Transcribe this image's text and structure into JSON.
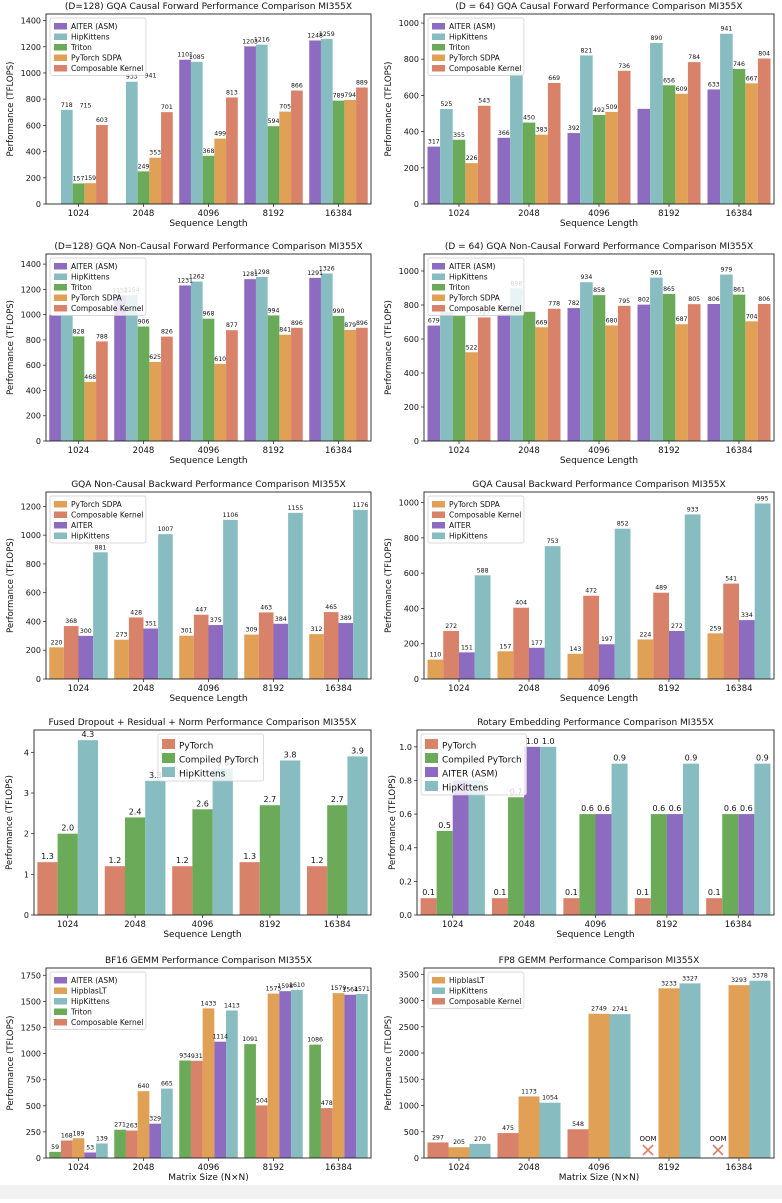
{
  "chart_data": [
    {
      "type": "bar",
      "title": "(D=128) GQA Causal Forward Performance Comparison MI355X",
      "xlabel": "Sequence Length",
      "ylabel": "Performance (TFLOPS)",
      "ylim": [
        0,
        1450
      ],
      "yticks": [
        "0",
        "200",
        "400",
        "600",
        "800",
        "1000",
        "1200",
        "1400"
      ],
      "legend_position": "upper-left",
      "categories": [
        "1024",
        "2048",
        "4096",
        "8192",
        "16384"
      ],
      "draw_order": [
        "PyTorch SDPA",
        "Triton",
        "Composable Kernel",
        "AITER (ASM)",
        "HipKittens"
      ],
      "series": [
        {
          "name": "AITER (ASM)",
          "color": "#8c6bc0",
          "values": [
            null,
            null,
            1101,
            1203,
            1248
          ],
          "labels": [
            "",
            "",
            "1101",
            "1203",
            "1248"
          ]
        },
        {
          "name": "HipKittens",
          "color": "#87bcc0",
          "values": [
            718,
            933,
            1085,
            1216,
            1259
          ],
          "labels": [
            "718",
            "933",
            "1085",
            "1216",
            "1259"
          ]
        },
        {
          "name": "Triton",
          "color": "#6aaa58",
          "values": [
            157,
            249,
            368,
            594,
            789
          ],
          "labels": [
            "157",
            "249",
            "368",
            "594",
            "789"
          ]
        },
        {
          "name": "PyTorch SDPA",
          "color": "#e0a055",
          "values": [
            159,
            353,
            499,
            705,
            794
          ],
          "labels": [
            "159",
            "353",
            "499",
            "705",
            "794"
          ]
        },
        {
          "name": "Composable Kernel",
          "color": "#d8826a",
          "values": [
            603,
            701,
            813,
            866,
            889
          ],
          "labels": [
            "603",
            "701",
            "813",
            "866",
            "889"
          ]
        }
      ],
      "extra_labels": [
        {
          "text": "715",
          "category": "1024",
          "value": 715
        },
        {
          "text": "941",
          "category": "2048",
          "value": 941
        }
      ]
    },
    {
      "type": "bar",
      "title": "(D = 64) GQA Causal Forward Performance Comparison MI355X",
      "xlabel": "Sequence Length",
      "ylabel": "Performance (TFLOPS)",
      "ylim": [
        0,
        1050
      ],
      "yticks": [
        "0",
        "200",
        "400",
        "600",
        "800",
        "1000"
      ],
      "legend_position": "upper-left",
      "categories": [
        "1024",
        "2048",
        "4096",
        "8192",
        "16384"
      ],
      "draw_order": [
        "PyTorch SDPA",
        "Triton",
        "Composable Kernel",
        "AITER (ASM)",
        "HipKittens"
      ],
      "series": [
        {
          "name": "AITER (ASM)",
          "color": "#8c6bc0",
          "values": [
            317,
            366,
            392,
            526,
            633
          ],
          "labels": [
            "317",
            "366",
            "392",
            "",
            "633"
          ]
        },
        {
          "name": "HipKittens",
          "color": "#87bcc0",
          "values": [
            525,
            722,
            821,
            890,
            941
          ],
          "labels": [
            "525",
            "722",
            "821",
            "890",
            "941"
          ]
        },
        {
          "name": "Triton",
          "color": "#6aaa58",
          "values": [
            355,
            450,
            492,
            656,
            746
          ],
          "labels": [
            "355",
            "450",
            "492",
            "656",
            "746"
          ]
        },
        {
          "name": "PyTorch SDPA",
          "color": "#e0a055",
          "values": [
            226,
            383,
            509,
            609,
            667
          ],
          "labels": [
            "226",
            "383",
            "509",
            "609",
            "667"
          ]
        },
        {
          "name": "Composable Kernel",
          "color": "#d8826a",
          "values": [
            543,
            669,
            736,
            784,
            804
          ],
          "labels": [
            "543",
            "669",
            "736",
            "784",
            "804"
          ]
        }
      ]
    },
    {
      "type": "bar",
      "title": "(D=128) GQA Non-Causal Forward Performance Comparison MI355X",
      "xlabel": "Sequence Length",
      "ylabel": "Performance (TFLOPS)",
      "ylim": [
        0,
        1480
      ],
      "yticks": [
        "0",
        "200",
        "400",
        "600",
        "800",
        "1000",
        "1200",
        "1400"
      ],
      "legend_position": "upper-left",
      "categories": [
        "1024",
        "2048",
        "4096",
        "8192",
        "16384"
      ],
      "draw_order": [
        "PyTorch SDPA",
        "Triton",
        "Composable Kernel",
        "AITER (ASM)",
        "HipKittens"
      ],
      "series": [
        {
          "name": "AITER (ASM)",
          "color": "#8c6bc0",
          "values": [
            1000,
            1152,
            1231,
            1281,
            1291
          ],
          "labels": [
            "",
            "1152",
            "1231",
            "1281",
            "1291"
          ]
        },
        {
          "name": "HipKittens",
          "color": "#87bcc0",
          "values": [
            1000,
            1154,
            1262,
            1298,
            1326
          ],
          "labels": [
            "",
            "1154",
            "1262",
            "1298",
            "1326"
          ]
        },
        {
          "name": "Triton",
          "color": "#6aaa58",
          "values": [
            828,
            906,
            968,
            994,
            990
          ],
          "labels": [
            "828",
            "906",
            "968",
            "994",
            "990"
          ]
        },
        {
          "name": "PyTorch SDPA",
          "color": "#e0a055",
          "values": [
            468,
            625,
            610,
            841,
            879
          ],
          "labels": [
            "468",
            "625",
            "610",
            "841",
            "879"
          ]
        },
        {
          "name": "Composable Kernel",
          "color": "#d8826a",
          "values": [
            788,
            826,
            877,
            896,
            896
          ],
          "labels": [
            "788",
            "826",
            "877",
            "896",
            "896"
          ]
        }
      ]
    },
    {
      "type": "bar",
      "title": "(D = 64) GQA Non-Causal Forward Performance Comparison MI355X",
      "xlabel": "Sequence Length",
      "ylabel": "Performance (TFLOPS)",
      "ylim": [
        0,
        1100
      ],
      "yticks": [
        "0",
        "200",
        "400",
        "600",
        "800",
        "1000"
      ],
      "legend_position": "upper-left",
      "categories": [
        "1024",
        "2048",
        "4096",
        "8192",
        "16384"
      ],
      "draw_order": [
        "PyTorch SDPA",
        "Triton",
        "Composable Kernel",
        "AITER (ASM)",
        "HipKittens"
      ],
      "series": [
        {
          "name": "AITER (ASM)",
          "color": "#8c6bc0",
          "values": [
            679,
            746,
            782,
            802,
            806
          ],
          "labels": [
            "679",
            "746",
            "782",
            "802",
            "806"
          ]
        },
        {
          "name": "HipKittens",
          "color": "#87bcc0",
          "values": [
            760,
            898,
            934,
            961,
            979
          ],
          "labels": [
            "",
            "898",
            "934",
            "961",
            "979"
          ]
        },
        {
          "name": "Triton",
          "color": "#6aaa58",
          "values": [
            735,
            760,
            858,
            865,
            861
          ],
          "labels": [
            "",
            "",
            "858",
            "865",
            "861"
          ]
        },
        {
          "name": "PyTorch SDPA",
          "color": "#e0a055",
          "values": [
            522,
            669,
            680,
            687,
            704
          ],
          "labels": [
            "522",
            "669",
            "680",
            "687",
            "704"
          ]
        },
        {
          "name": "Composable Kernel",
          "color": "#d8826a",
          "values": [
            727,
            778,
            795,
            805,
            806
          ],
          "labels": [
            "727",
            "778",
            "795",
            "805",
            "806"
          ]
        }
      ]
    },
    {
      "type": "bar",
      "title": "GQA Non-Causal Backward Performance Comparison MI355X",
      "xlabel": "Sequence Length",
      "ylabel": "Performance (TFLOPS)",
      "ylim": [
        0,
        1300
      ],
      "yticks": [
        "0",
        "200",
        "400",
        "600",
        "800",
        "1000",
        "1200"
      ],
      "legend_position": "upper-left",
      "categories": [
        "1024",
        "2048",
        "4096",
        "8192",
        "16384"
      ],
      "series": [
        {
          "name": "PyTorch SDPA",
          "color": "#e0a055",
          "values": [
            220,
            273,
            301,
            309,
            312
          ]
        },
        {
          "name": "Composable Kernel",
          "color": "#d8826a",
          "values": [
            368,
            428,
            447,
            463,
            465
          ]
        },
        {
          "name": "AITER",
          "color": "#8c6bc0",
          "values": [
            300,
            351,
            375,
            384,
            389
          ]
        },
        {
          "name": "HipKittens",
          "color": "#87bcc0",
          "values": [
            881,
            1007,
            1106,
            1155,
            1176
          ]
        }
      ]
    },
    {
      "type": "bar",
      "title": "GQA Causal Backward Performance Comparison MI355X",
      "xlabel": "Sequence Length",
      "ylabel": "Performance (TFLOPS)",
      "ylim": [
        0,
        1060
      ],
      "yticks": [
        "0",
        "200",
        "400",
        "600",
        "800",
        "1000"
      ],
      "legend_position": "upper-left",
      "categories": [
        "1024",
        "2048",
        "4096",
        "8192",
        "16384"
      ],
      "series": [
        {
          "name": "PyTorch SDPA",
          "color": "#e0a055",
          "values": [
            110,
            157,
            143,
            224,
            259
          ]
        },
        {
          "name": "Composable Kernel",
          "color": "#d8826a",
          "values": [
            272,
            404,
            472,
            489,
            541
          ]
        },
        {
          "name": "AITER",
          "color": "#8c6bc0",
          "values": [
            151,
            177,
            197,
            272,
            334
          ]
        },
        {
          "name": "HipKittens",
          "color": "#87bcc0",
          "values": [
            588,
            753,
            852,
            933,
            995
          ]
        }
      ]
    },
    {
      "type": "bar",
      "title": "Fused Dropout + Residual + Norm Performance Comparison MI355X",
      "xlabel": "Sequence Length",
      "ylabel": "Performance (TFLOPS)",
      "ylim": [
        0,
        4.55
      ],
      "yticks": [
        "0",
        "1",
        "2",
        "3",
        "4"
      ],
      "legend_position": "upper-center",
      "categories": [
        "1024",
        "2048",
        "4096",
        "8192",
        "16384"
      ],
      "series": [
        {
          "name": "PyTorch",
          "color": "#d8826a",
          "values": [
            1.3,
            1.2,
            1.2,
            1.3,
            1.2
          ],
          "labels": [
            "1.3",
            "1.2",
            "1.2",
            "1.3",
            "1.2"
          ]
        },
        {
          "name": "Compiled PyTorch",
          "color": "#6aaa58",
          "values": [
            2.0,
            2.4,
            2.6,
            2.7,
            2.7
          ],
          "labels": [
            "2.0",
            "2.4",
            "2.6",
            "2.7",
            "2.7"
          ]
        },
        {
          "name": "HipKittens",
          "color": "#87bcc0",
          "values": [
            4.3,
            3.3,
            3.6,
            3.8,
            3.9
          ],
          "labels": [
            "4.3",
            "3.3",
            "3.6",
            "3.8",
            "3.9"
          ]
        }
      ]
    },
    {
      "type": "bar",
      "title": "Rotary Embedding Performance Comparison MI355X",
      "xlabel": "Sequence Length",
      "ylabel": "Performance (TFLOPS)",
      "ylim": [
        0,
        1.1
      ],
      "yticks": [
        "0.0",
        "0.2",
        "0.4",
        "0.6",
        "0.8",
        "1.0"
      ],
      "legend_position": "upper-left",
      "categories": [
        "1024",
        "2048",
        "4096",
        "8192",
        "16384"
      ],
      "series": [
        {
          "name": "PyTorch",
          "color": "#d8826a",
          "values": [
            0.1,
            0.1,
            0.1,
            0.1,
            0.1
          ],
          "labels": [
            "0.1",
            "0.1",
            "0.1",
            "0.1",
            "0.1"
          ]
        },
        {
          "name": "Compiled PyTorch",
          "color": "#6aaa58",
          "values": [
            0.5,
            0.7,
            0.6,
            0.6,
            0.6
          ],
          "labels": [
            "0.5",
            "0.7",
            "0.6",
            "0.6",
            "0.6"
          ]
        },
        {
          "name": "AITER (ASM)",
          "color": "#8c6bc0",
          "values": [
            0.8,
            1.0,
            0.6,
            0.6,
            0.6
          ],
          "labels": [
            "",
            "1.0",
            "0.6",
            "0.6",
            "0.6"
          ]
        },
        {
          "name": "HipKittens",
          "color": "#87bcc0",
          "values": [
            0.8,
            1.0,
            0.9,
            0.9,
            0.9
          ],
          "labels": [
            "",
            "1.0",
            "0.9",
            "0.9",
            "0.9"
          ]
        }
      ]
    },
    {
      "type": "bar",
      "title": "BF16 GEMM Performance Comparison MI355X",
      "xlabel": "Matrix Size (N×N)",
      "ylabel": "Performance (TFLOPS)",
      "ylim": [
        0,
        1820
      ],
      "yticks": [
        "0",
        "250",
        "500",
        "750",
        "1000",
        "1250",
        "1500",
        "1750"
      ],
      "legend_position": "upper-left",
      "categories": [
        "1024",
        "2048",
        "4096",
        "8192",
        "16384"
      ],
      "series_order": [
        "Triton",
        "Composable Kernel",
        "HipblasLT",
        "AITER (ASM)",
        "HipKittens"
      ],
      "series": [
        {
          "name": "AITER (ASM)",
          "color": "#8c6bc0",
          "values": [
            53,
            329,
            1114,
            1598,
            1564
          ]
        },
        {
          "name": "HipblasLT",
          "color": "#e0a055",
          "values": [
            189,
            640,
            1433,
            1575,
            1579
          ]
        },
        {
          "name": "HipKittens",
          "color": "#87bcc0",
          "values": [
            139,
            665,
            1413,
            1610,
            1571
          ]
        },
        {
          "name": "Triton",
          "color": "#6aaa58",
          "values": [
            59,
            271,
            934,
            1091,
            1086
          ]
        },
        {
          "name": "Composable Kernel",
          "color": "#d8826a",
          "values": [
            168,
            263,
            931,
            504,
            478
          ]
        }
      ]
    },
    {
      "type": "bar",
      "title": "FP8 GEMM Performance Comparison MI355X",
      "xlabel": "Matrix Size (N×N)",
      "ylabel": "Performance (TFLOPS)",
      "ylim": [
        0,
        3620
      ],
      "yticks": [
        "0",
        "500",
        "1000",
        "1500",
        "2000",
        "2500",
        "3000",
        "3500"
      ],
      "legend_position": "upper-left",
      "categories": [
        "1024",
        "2048",
        "4096",
        "8192",
        "16384"
      ],
      "series_order": [
        "Composable Kernel",
        "HipblasLT",
        "HipKittens"
      ],
      "series": [
        {
          "name": "HipblasLT",
          "color": "#e0a055",
          "values": [
            205,
            1173,
            2749,
            3233,
            3293
          ]
        },
        {
          "name": "HipKittens",
          "color": "#87bcc0",
          "values": [
            270,
            1054,
            2741,
            3327,
            3378
          ]
        },
        {
          "name": "Composable Kernel",
          "color": "#d8826a",
          "values": [
            297,
            475,
            548,
            null,
            null
          ],
          "labels": [
            "297",
            "475",
            "548",
            "OOM",
            "OOM"
          ]
        }
      ]
    }
  ]
}
